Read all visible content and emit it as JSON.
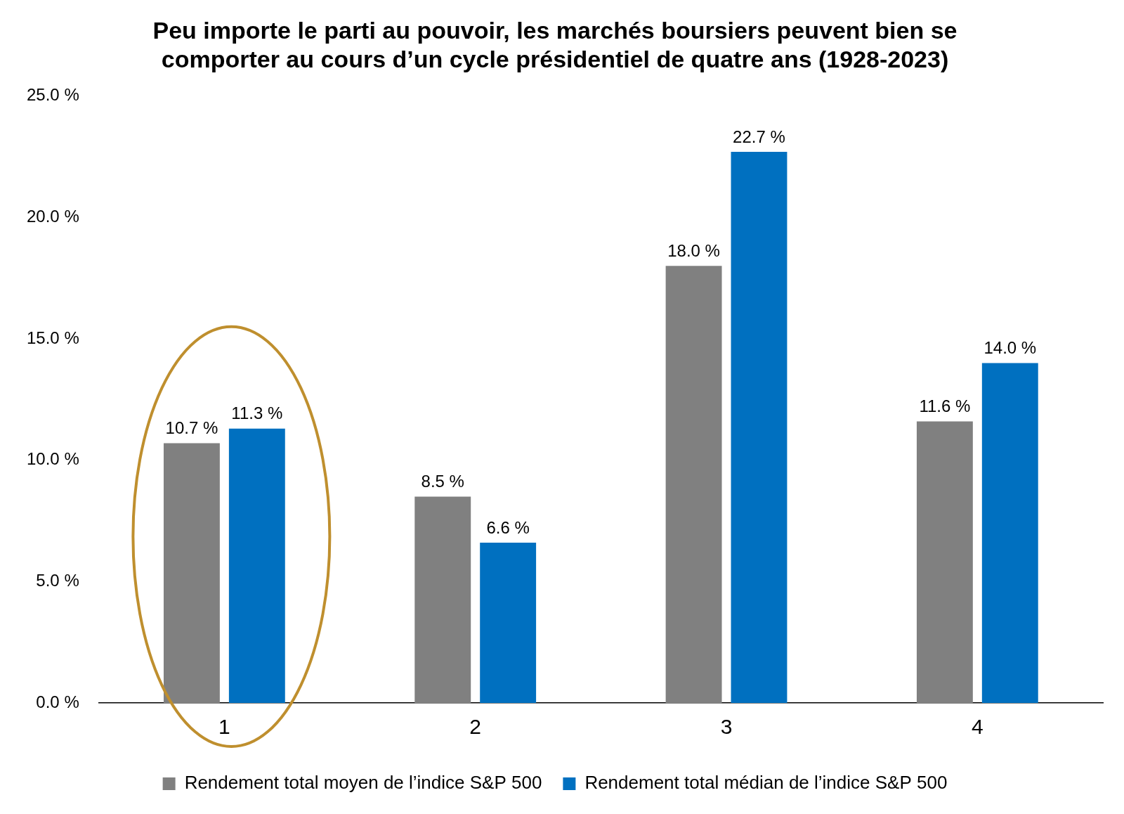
{
  "chart_data": {
    "type": "bar",
    "title": "Peu importe le parti au pouvoir, les marchés boursiers peuvent bien se comporter au cours d’un cycle présidentiel de quatre ans (1928-2023)",
    "categories": [
      "1",
      "2",
      "3",
      "4"
    ],
    "series": [
      {
        "name": "Rendement total moyen de l’indice S&P 500",
        "color": "#808080",
        "values": [
          10.7,
          8.5,
          18.0,
          11.6
        ],
        "value_labels": [
          "10.7 %",
          "8.5 %",
          "18.0 %",
          "11.6 %"
        ]
      },
      {
        "name": "Rendement total médian de l’indice S&P 500",
        "color": "#0070c0",
        "values": [
          11.3,
          6.6,
          22.7,
          14.0
        ],
        "value_labels": [
          "11.3 %",
          "6.6 %",
          "22.7 %",
          "14.0 %"
        ]
      }
    ],
    "ylim": [
      0,
      25
    ],
    "yticks": [
      {
        "value": 0,
        "label": "0.0 %"
      },
      {
        "value": 5,
        "label": "5.0 %"
      },
      {
        "value": 10,
        "label": "10.0 %"
      },
      {
        "value": 15,
        "label": "15.0 %"
      },
      {
        "value": 20,
        "label": "20.0 %"
      },
      {
        "value": 25,
        "label": "25.0 %"
      }
    ],
    "grid": false,
    "legend": "bottom",
    "data_labels": true
  }
}
